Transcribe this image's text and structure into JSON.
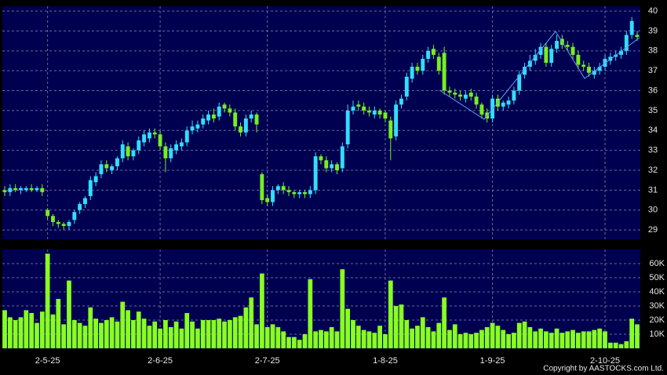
{
  "chart_data": {
    "type": "candlestick",
    "categories": [
      null,
      null,
      null,
      null,
      null,
      null,
      null,
      null,
      "2-5-25",
      null,
      null,
      null,
      null,
      null,
      null,
      null,
      null,
      null,
      null,
      null,
      null,
      null,
      null,
      null,
      null,
      null,
      null,
      null,
      null,
      "2-6-25",
      null,
      null,
      null,
      null,
      null,
      null,
      null,
      null,
      null,
      null,
      null,
      null,
      null,
      null,
      null,
      null,
      null,
      null,
      null,
      "2-7-25",
      null,
      null,
      null,
      null,
      null,
      null,
      null,
      null,
      null,
      null,
      null,
      null,
      null,
      null,
      null,
      null,
      null,
      null,
      null,
      null,
      null,
      "1-8-25",
      null,
      null,
      null,
      null,
      null,
      null,
      null,
      null,
      null,
      null,
      null,
      null,
      null,
      null,
      null,
      null,
      null,
      null,
      null,
      "1-9-25",
      null,
      null,
      null,
      null,
      null,
      null,
      null,
      null,
      null,
      null,
      null,
      null,
      null,
      null,
      null,
      null,
      null,
      null,
      null,
      null,
      "2-10-25",
      null,
      null,
      null,
      null,
      null,
      null
    ],
    "open": [
      31.0,
      30.9,
      31.1,
      31.0,
      31.0,
      31.1,
      31.0,
      31.1,
      30.0,
      29.7,
      29.4,
      29.3,
      29.2,
      29.5,
      30.0,
      30.3,
      30.7,
      31.4,
      31.8,
      32.3,
      32.0,
      32.2,
      32.6,
      33.2,
      32.7,
      33.0,
      33.4,
      33.6,
      33.9,
      33.8,
      33.2,
      32.6,
      33.0,
      33.2,
      33.4,
      34.0,
      34.1,
      34.3,
      34.5,
      34.8,
      34.7,
      35.3,
      35.1,
      34.9,
      34.2,
      33.9,
      34.6,
      34.8,
      31.8,
      30.6,
      30.4,
      31.0,
      31.2,
      31.0,
      30.9,
      30.8,
      30.9,
      30.8,
      31.0,
      32.7,
      32.5,
      32.1,
      32.3,
      32.1,
      33.3,
      35.0,
      35.3,
      35.2,
      35.0,
      34.8,
      35.0,
      34.9,
      34.5,
      33.7,
      35.3,
      35.7,
      36.6,
      37.2,
      37.0,
      37.6,
      38.1,
      37.7,
      37.9,
      36.0,
      35.9,
      35.8,
      35.6,
      35.9,
      35.7,
      35.3,
      34.9,
      34.6,
      35.6,
      35.2,
      35.3,
      35.5,
      36.0,
      36.8,
      37.2,
      37.5,
      37.8,
      38.2,
      37.4,
      38.1,
      38.6,
      38.3,
      38.2,
      37.8,
      37.3,
      37.2,
      36.8,
      37.0,
      37.2,
      37.5,
      37.7,
      37.8,
      38.0,
      38.8,
      38.8
    ],
    "high": [
      31.2,
      31.3,
      31.3,
      31.2,
      31.2,
      31.3,
      31.2,
      31.3,
      30.1,
      29.8,
      29.5,
      29.4,
      29.5,
      30.0,
      30.4,
      30.7,
      31.7,
      31.9,
      32.5,
      32.5,
      32.3,
      32.7,
      33.5,
      33.4,
      33.1,
      33.7,
      34.0,
      34.1,
      34.1,
      34.0,
      33.4,
      33.3,
      33.5,
      33.6,
      34.2,
      34.5,
      34.5,
      34.8,
      35.0,
      35.1,
      35.4,
      35.4,
      35.3,
      35.1,
      34.4,
      34.8,
      35.0,
      34.9,
      31.9,
      30.8,
      31.2,
      31.3,
      31.4,
      31.2,
      31.0,
      31.0,
      31.0,
      31.2,
      32.9,
      32.8,
      32.7,
      32.5,
      32.4,
      33.4,
      35.3,
      35.5,
      35.5,
      35.4,
      35.2,
      35.2,
      35.1,
      35.0,
      34.7,
      35.5,
      35.8,
      36.9,
      37.4,
      37.4,
      37.8,
      38.2,
      38.3,
      37.9,
      38.2,
      36.2,
      36.1,
      36.0,
      36.0,
      36.1,
      35.9,
      35.4,
      35.1,
      35.8,
      35.8,
      35.5,
      35.7,
      36.2,
      37.0,
      37.4,
      37.8,
      38.1,
      38.4,
      38.4,
      38.3,
      38.8,
      38.8,
      38.5,
      38.4,
      38.0,
      37.5,
      37.4,
      37.2,
      37.4,
      37.8,
      37.9,
      38.0,
      38.2,
      39.0,
      39.7,
      39.0
    ],
    "low": [
      30.7,
      30.7,
      30.9,
      30.8,
      30.9,
      30.9,
      30.9,
      30.7,
      29.5,
      29.2,
      29.1,
      29.0,
      29.0,
      29.3,
      29.8,
      30.1,
      30.5,
      31.2,
      31.6,
      31.9,
      31.8,
      32.0,
      32.4,
      32.5,
      32.5,
      32.8,
      33.2,
      33.4,
      33.6,
      33.0,
      31.9,
      32.4,
      32.8,
      33.0,
      33.2,
      33.8,
      33.9,
      34.1,
      34.3,
      34.4,
      34.5,
      34.9,
      34.7,
      34.0,
      33.7,
      33.7,
      34.4,
      33.9,
      30.3,
      30.2,
      30.2,
      30.8,
      30.8,
      30.7,
      30.6,
      30.6,
      30.6,
      30.6,
      30.8,
      32.3,
      31.9,
      31.9,
      31.8,
      31.9,
      33.1,
      34.8,
      35.0,
      34.8,
      34.7,
      34.6,
      34.6,
      34.4,
      32.5,
      33.5,
      35.1,
      35.5,
      36.4,
      36.8,
      36.8,
      37.4,
      37.6,
      36.8,
      35.8,
      35.7,
      35.6,
      35.5,
      35.4,
      35.5,
      35.1,
      34.6,
      34.4,
      34.4,
      35.0,
      35.0,
      35.1,
      35.3,
      35.8,
      36.6,
      37.0,
      37.3,
      37.6,
      37.2,
      37.2,
      37.9,
      38.1,
      38.0,
      37.6,
      37.1,
      37.0,
      36.7,
      36.6,
      36.8,
      37.0,
      37.3,
      37.5,
      37.6,
      37.8,
      38.6,
      38.5
    ],
    "close": [
      30.9,
      31.1,
      31.0,
      31.1,
      31.1,
      31.0,
      31.1,
      30.9,
      29.7,
      29.4,
      29.3,
      29.2,
      29.4,
      29.9,
      30.3,
      30.6,
      31.5,
      31.7,
      32.3,
      32.1,
      32.2,
      32.6,
      33.3,
      32.7,
      33.0,
      33.5,
      33.8,
      33.9,
      33.8,
      33.2,
      32.6,
      33.1,
      33.3,
      33.4,
      34.0,
      34.2,
      34.3,
      34.6,
      34.8,
      34.6,
      35.2,
      35.1,
      34.9,
      34.2,
      33.9,
      34.6,
      34.8,
      34.3,
      30.5,
      30.4,
      31.0,
      31.2,
      31.0,
      30.9,
      30.8,
      30.9,
      30.8,
      31.0,
      32.7,
      32.5,
      32.1,
      32.3,
      32.0,
      33.2,
      35.0,
      35.2,
      35.2,
      35.0,
      34.9,
      35.0,
      34.8,
      34.6,
      33.6,
      35.3,
      35.6,
      36.7,
      37.2,
      37.0,
      37.6,
      38.0,
      37.8,
      37.0,
      36.0,
      35.9,
      35.8,
      35.7,
      35.8,
      35.7,
      35.3,
      34.8,
      34.6,
      35.6,
      35.2,
      35.4,
      35.5,
      36.0,
      36.8,
      37.2,
      37.5,
      37.8,
      38.2,
      37.4,
      38.1,
      38.5,
      38.3,
      38.2,
      37.8,
      37.3,
      37.2,
      36.9,
      37.0,
      37.2,
      37.6,
      37.7,
      37.8,
      38.0,
      38.8,
      39.5,
      38.7
    ],
    "up_color": "#33ddff",
    "down_color": "#77ee22",
    "ylim": [
      28.53,
      40.24
    ],
    "yticks": [
      29,
      30,
      31,
      32,
      33,
      34,
      35,
      36,
      37,
      38,
      39,
      40
    ],
    "grid": true,
    "volume": {
      "color": "#88ff22",
      "values": [
        27000,
        22000,
        20000,
        22000,
        27000,
        25000,
        18000,
        26000,
        67000,
        24000,
        35000,
        17000,
        48000,
        20000,
        18000,
        16000,
        29000,
        21000,
        18000,
        20000,
        22000,
        19000,
        33000,
        27000,
        20000,
        26000,
        21000,
        16000,
        19000,
        14000,
        20000,
        15000,
        19000,
        14000,
        25000,
        19000,
        14000,
        20000,
        20000,
        20000,
        21000,
        19000,
        20000,
        22000,
        23000,
        29000,
        36000,
        17000,
        53000,
        15000,
        17000,
        15000,
        12000,
        8000,
        8000,
        6000,
        10000,
        49000,
        12000,
        13000,
        12000,
        15000,
        12000,
        56000,
        28000,
        20000,
        16000,
        13000,
        12000,
        11000,
        16000,
        10000,
        48000,
        30000,
        31000,
        20000,
        14000,
        16000,
        22000,
        15000,
        12000,
        18000,
        36000,
        13000,
        17000,
        10000,
        11000,
        10000,
        11000,
        13000,
        15000,
        18000,
        16000,
        13000,
        10000,
        11000,
        18000,
        19000,
        15000,
        12000,
        14000,
        12000,
        11000,
        14000,
        11000,
        12000,
        13000,
        11000,
        12000,
        12000,
        13000,
        14000,
        12000,
        4000,
        4000,
        3000,
        5000,
        21000,
        17000
      ],
      "ylim": [
        0,
        70000
      ],
      "yticks": [
        {
          "value": 10000,
          "label": "10K"
        },
        {
          "value": 20000,
          "label": "20K"
        },
        {
          "value": 30000,
          "label": "30K"
        },
        {
          "value": 40000,
          "label": "40K"
        },
        {
          "value": 50000,
          "label": "50K"
        },
        {
          "value": 60000,
          "label": "60K"
        }
      ]
    },
    "copyright": "Copyright by AASTOCKS.com Ltd."
  }
}
